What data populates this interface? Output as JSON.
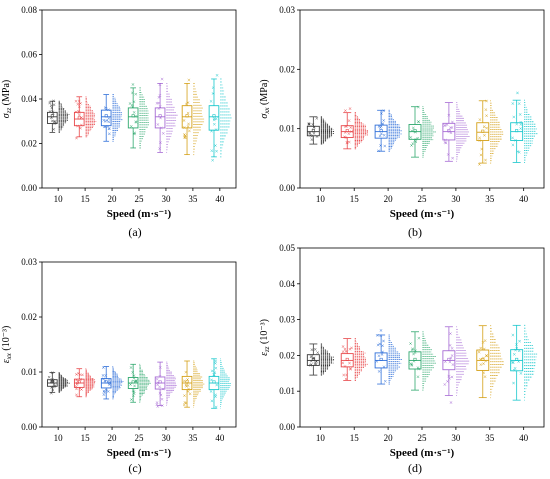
{
  "colors": [
    "#3a3a3a",
    "#e8474a",
    "#2f6fd9",
    "#2fa86e",
    "#a66ad4",
    "#d4a017",
    "#19c7cc"
  ],
  "chart_data": [
    {
      "type": "box",
      "panel_label": "(a)",
      "ylabel_symbol": "σ",
      "ylabel_subscript": "zz",
      "ylabel_unit": " (MPa)",
      "xlabel": "Speed  (m·s⁻¹)",
      "categories": [
        "10",
        "15",
        "20",
        "25",
        "30",
        "35",
        "40"
      ],
      "yticks": [
        "0.00",
        "0.02",
        "0.04",
        "0.06",
        "0.08"
      ],
      "ylim": [
        0,
        0.08
      ],
      "box": [
        {
          "min": 0.025,
          "q1": 0.029,
          "median": 0.032,
          "q3": 0.034,
          "max": 0.039
        },
        {
          "min": 0.023,
          "q1": 0.028,
          "median": 0.031,
          "q3": 0.034,
          "max": 0.041
        },
        {
          "min": 0.021,
          "q1": 0.028,
          "median": 0.032,
          "q3": 0.035,
          "max": 0.042
        },
        {
          "min": 0.018,
          "q1": 0.027,
          "median": 0.032,
          "q3": 0.036,
          "max": 0.045
        },
        {
          "min": 0.016,
          "q1": 0.027,
          "median": 0.032,
          "q3": 0.036,
          "max": 0.047
        },
        {
          "min": 0.015,
          "q1": 0.027,
          "median": 0.032,
          "q3": 0.037,
          "max": 0.047
        },
        {
          "min": 0.014,
          "q1": 0.026,
          "median": 0.032,
          "q3": 0.037,
          "max": 0.049
        }
      ]
    },
    {
      "type": "box",
      "panel_label": "(b)",
      "ylabel_symbol": "σ",
      "ylabel_subscript": "xx",
      "ylabel_unit": " (MPa)",
      "xlabel": "Speed  (m·s⁻¹)",
      "categories": [
        "10",
        "15",
        "20",
        "25",
        "30",
        "35",
        "40"
      ],
      "yticks": [
        "0.00",
        "0.01",
        "0.02",
        "0.03"
      ],
      "ylim": [
        0,
        0.03
      ],
      "box": [
        {
          "min": 0.0074,
          "q1": 0.0088,
          "median": 0.0095,
          "q3": 0.0104,
          "max": 0.012
        },
        {
          "min": 0.0066,
          "q1": 0.0085,
          "median": 0.0095,
          "q3": 0.0105,
          "max": 0.0127
        },
        {
          "min": 0.0062,
          "q1": 0.0084,
          "median": 0.0095,
          "q3": 0.0106,
          "max": 0.0131
        },
        {
          "min": 0.0052,
          "q1": 0.0082,
          "median": 0.0095,
          "q3": 0.0107,
          "max": 0.0137
        },
        {
          "min": 0.0045,
          "q1": 0.0081,
          "median": 0.0095,
          "q3": 0.0109,
          "max": 0.0144
        },
        {
          "min": 0.0042,
          "q1": 0.008,
          "median": 0.0094,
          "q3": 0.011,
          "max": 0.0147
        },
        {
          "min": 0.0043,
          "q1": 0.008,
          "median": 0.0095,
          "q3": 0.011,
          "max": 0.0148
        }
      ]
    },
    {
      "type": "box",
      "panel_label": "(c)",
      "ylabel_symbol": "ε",
      "ylabel_subscript": "xx",
      "ylabel_unit": " (10⁻³)",
      "xlabel": "Speed  (m·s⁻¹)",
      "categories": [
        "10",
        "15",
        "20",
        "25",
        "30",
        "35",
        "40"
      ],
      "yticks": [
        "0.00",
        "0.01",
        "0.02",
        "0.03"
      ],
      "ylim": [
        0,
        0.03
      ],
      "box": [
        {
          "min": 0.0063,
          "q1": 0.0074,
          "median": 0.008,
          "q3": 0.0086,
          "max": 0.0099
        },
        {
          "min": 0.0055,
          "q1": 0.0072,
          "median": 0.008,
          "q3": 0.0087,
          "max": 0.0106
        },
        {
          "min": 0.0051,
          "q1": 0.0071,
          "median": 0.008,
          "q3": 0.0088,
          "max": 0.011
        },
        {
          "min": 0.0045,
          "q1": 0.007,
          "median": 0.008,
          "q3": 0.009,
          "max": 0.0114
        },
        {
          "min": 0.0039,
          "q1": 0.0069,
          "median": 0.008,
          "q3": 0.0091,
          "max": 0.0118
        },
        {
          "min": 0.0036,
          "q1": 0.0068,
          "median": 0.008,
          "q3": 0.0092,
          "max": 0.012
        },
        {
          "min": 0.0034,
          "q1": 0.0068,
          "median": 0.008,
          "q3": 0.0092,
          "max": 0.0124
        }
      ]
    },
    {
      "type": "box",
      "panel_label": "(d)",
      "ylabel_symbol": "ε",
      "ylabel_subscript": "zz",
      "ylabel_unit": " (10⁻³)",
      "xlabel": "Speed  (m·s⁻¹)",
      "categories": [
        "10",
        "15",
        "20",
        "25",
        "30",
        "35",
        "40"
      ],
      "yticks": [
        "0.00",
        "0.01",
        "0.02",
        "0.03",
        "0.04",
        "0.05"
      ],
      "ylim": [
        0,
        0.05
      ],
      "box": [
        {
          "min": 0.0145,
          "q1": 0.0172,
          "median": 0.0186,
          "q3": 0.0202,
          "max": 0.0232
        },
        {
          "min": 0.013,
          "q1": 0.0168,
          "median": 0.0186,
          "q3": 0.0205,
          "max": 0.0247
        },
        {
          "min": 0.012,
          "q1": 0.0165,
          "median": 0.0186,
          "q3": 0.0207,
          "max": 0.0257
        },
        {
          "min": 0.0103,
          "q1": 0.0162,
          "median": 0.0186,
          "q3": 0.021,
          "max": 0.0266
        },
        {
          "min": 0.0088,
          "q1": 0.016,
          "median": 0.0186,
          "q3": 0.0213,
          "max": 0.028
        },
        {
          "min": 0.0082,
          "q1": 0.0158,
          "median": 0.0186,
          "q3": 0.0215,
          "max": 0.0283
        },
        {
          "min": 0.0075,
          "q1": 0.0157,
          "median": 0.0186,
          "q3": 0.0216,
          "max": 0.0284
        }
      ]
    }
  ]
}
